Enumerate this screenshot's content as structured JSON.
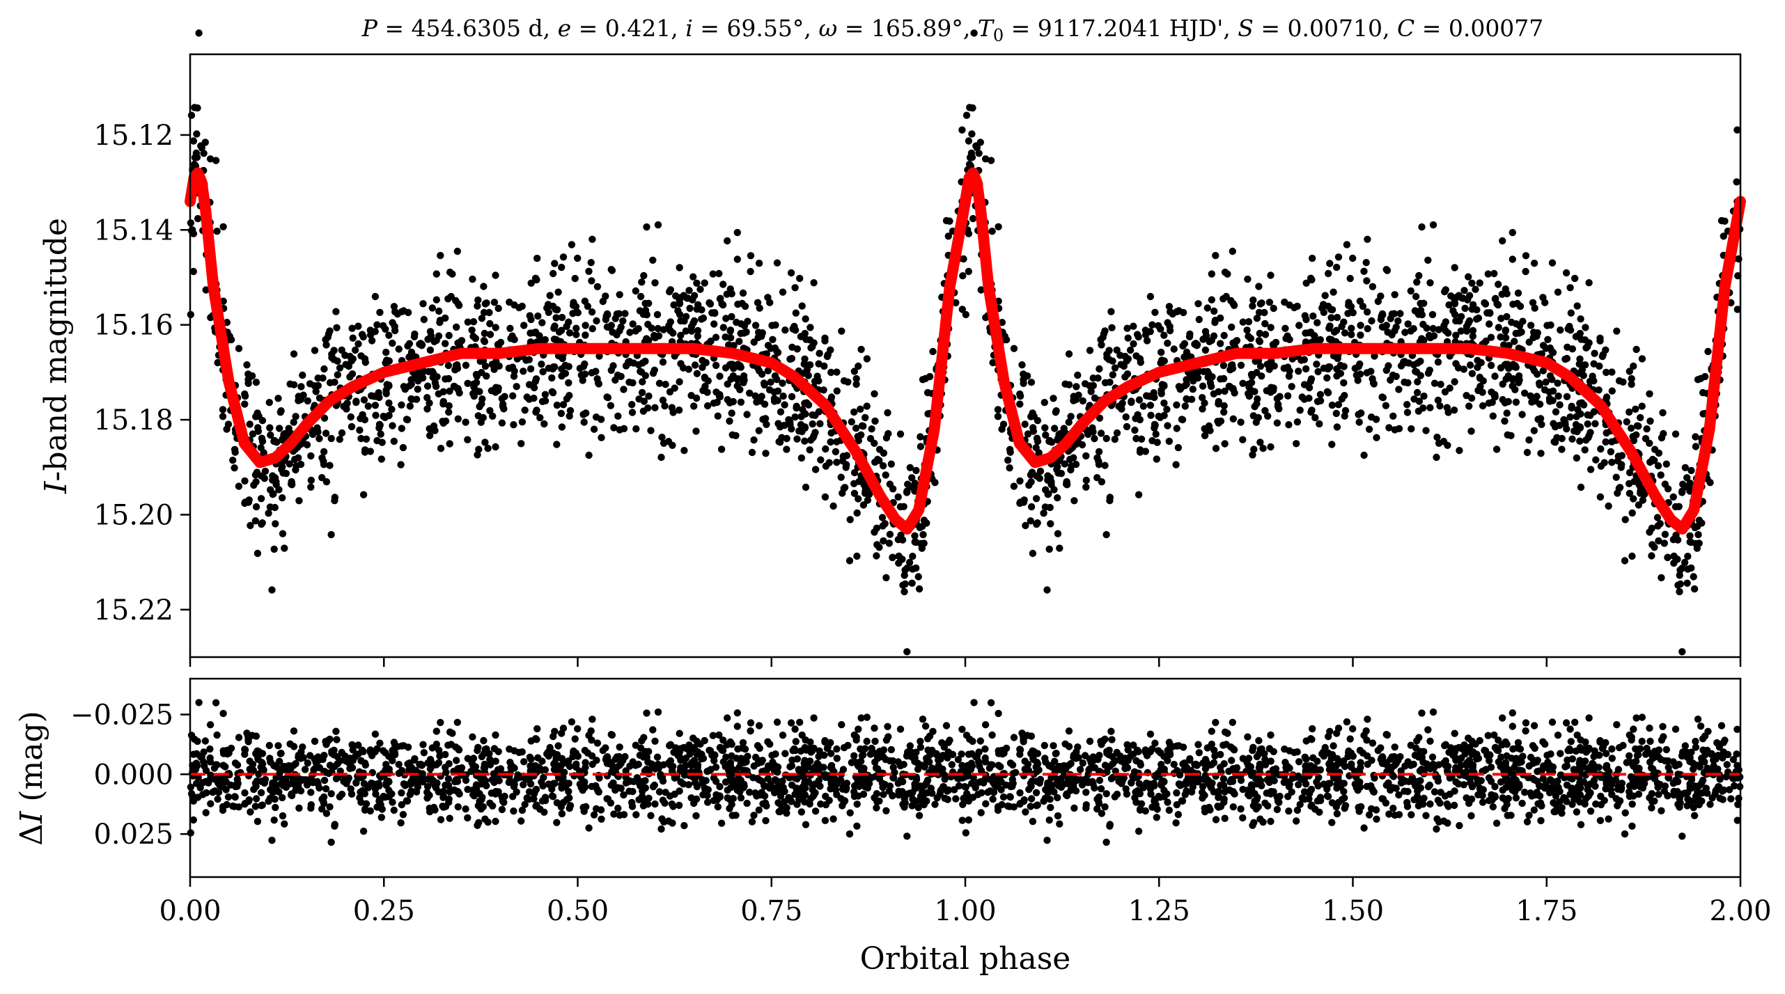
{
  "title": "P = 454.6305 d, e = 0.421, i = 69.55°, ω = 165.89°, T0 = 9117.2041 HJD', S = 0.00710, C = 0.00077",
  "title_parts": {
    "P_sym": "P",
    "P_val": " = 454.6305 d, ",
    "e_sym": "e",
    "e_val": " = 0.421, ",
    "i_sym": "i",
    "i_val": " = 69.55°, ",
    "w_sym": "ω",
    "w_val": " = 165.89°, ",
    "T_sym": "T",
    "T_sub": "0",
    "T_val": " = 9117.2041 HJD', ",
    "S_sym": "S",
    "S_val": " = 0.00710, ",
    "C_sym": "C",
    "C_val": " = 0.00077"
  },
  "colors": {
    "points": "#000000",
    "model": "#ff0000",
    "residual_zero_line": "#ff0000"
  },
  "chart_data": [
    {
      "type": "scatter",
      "panel": "top",
      "ylabel": "I-band magnitude",
      "ylabel_parts": {
        "italic": "I",
        "rest": "-band magnitude"
      },
      "xlabel": "",
      "xlim": [
        0.0,
        2.0
      ],
      "ylim": [
        15.23,
        15.103
      ],
      "y_inverted": true,
      "yticks": [
        "15.12",
        "15.14",
        "15.16",
        "15.18",
        "15.20",
        "15.22"
      ],
      "xtick_values": [
        0.0,
        0.25,
        0.5,
        0.75,
        1.0,
        1.25,
        1.5,
        1.75,
        2.0
      ],
      "xtick_labels_visible": false,
      "grid": false,
      "series": [
        {
          "kind": "scatter",
          "x": [
            0.0,
            0.005,
            0.01,
            0.015,
            0.02,
            0.03,
            0.05,
            0.07,
            0.09,
            0.11,
            0.13,
            0.15,
            0.18,
            0.21,
            0.25,
            0.3,
            0.35,
            0.4,
            0.45,
            0.5,
            0.55,
            0.6,
            0.65,
            0.7,
            0.75,
            0.78,
            0.82,
            0.86,
            0.89,
            0.91,
            0.925,
            0.94,
            0.96,
            0.98,
            1.0,
            1.005,
            1.01,
            1.015,
            1.02,
            1.03,
            1.05,
            1.07,
            1.09,
            1.11,
            1.13,
            1.15,
            1.18,
            1.21,
            1.25,
            1.3,
            1.35,
            1.4,
            1.45,
            1.5,
            1.55,
            1.6,
            1.65,
            1.7,
            1.75,
            1.78,
            1.82,
            1.86,
            1.89,
            1.91,
            1.925,
            1.94,
            1.96,
            1.98,
            2.0
          ],
          "y": [
            15.134,
            15.129,
            15.128,
            15.13,
            15.136,
            15.152,
            15.172,
            15.185,
            15.189,
            15.188,
            15.185,
            15.181,
            15.176,
            15.173,
            15.17,
            15.168,
            15.166,
            15.166,
            15.165,
            15.165,
            15.165,
            15.165,
            15.165,
            15.166,
            15.168,
            15.171,
            15.177,
            15.187,
            15.196,
            15.201,
            15.203,
            15.199,
            15.182,
            15.152,
            15.134,
            15.129,
            15.128,
            15.13,
            15.136,
            15.152,
            15.172,
            15.185,
            15.189,
            15.188,
            15.185,
            15.181,
            15.176,
            15.173,
            15.17,
            15.168,
            15.166,
            15.166,
            15.165,
            15.165,
            15.165,
            15.165,
            15.165,
            15.166,
            15.168,
            15.171,
            15.177,
            15.187,
            15.196,
            15.201,
            15.203,
            15.199,
            15.182,
            15.152,
            15.134
          ],
          "note_count": "observations sampled along the model with scatter of about ±0.01 mag"
        },
        {
          "kind": "line",
          "x": [
            0.0,
            0.005,
            0.01,
            0.015,
            0.02,
            0.03,
            0.05,
            0.07,
            0.09,
            0.11,
            0.13,
            0.15,
            0.18,
            0.21,
            0.25,
            0.3,
            0.35,
            0.4,
            0.45,
            0.5,
            0.55,
            0.6,
            0.65,
            0.7,
            0.75,
            0.78,
            0.82,
            0.86,
            0.89,
            0.91,
            0.925,
            0.94,
            0.96,
            0.98,
            1.0,
            1.005,
            1.01,
            1.015,
            1.02,
            1.03,
            1.05,
            1.07,
            1.09,
            1.11,
            1.13,
            1.15,
            1.18,
            1.21,
            1.25,
            1.3,
            1.35,
            1.4,
            1.45,
            1.5,
            1.55,
            1.6,
            1.65,
            1.7,
            1.75,
            1.78,
            1.82,
            1.86,
            1.89,
            1.91,
            1.925,
            1.94,
            1.96,
            1.98,
            2.0
          ],
          "y": [
            15.134,
            15.129,
            15.128,
            15.13,
            15.136,
            15.152,
            15.172,
            15.185,
            15.189,
            15.188,
            15.185,
            15.181,
            15.176,
            15.173,
            15.17,
            15.168,
            15.166,
            15.166,
            15.165,
            15.165,
            15.165,
            15.165,
            15.165,
            15.166,
            15.168,
            15.171,
            15.177,
            15.187,
            15.196,
            15.201,
            15.203,
            15.199,
            15.182,
            15.152,
            15.134,
            15.129,
            15.128,
            15.13,
            15.136,
            15.152,
            15.172,
            15.185,
            15.189,
            15.188,
            15.185,
            15.181,
            15.176,
            15.173,
            15.17,
            15.168,
            15.166,
            15.166,
            15.165,
            15.165,
            15.165,
            15.165,
            15.165,
            15.166,
            15.168,
            15.171,
            15.177,
            15.187,
            15.196,
            15.201,
            15.203,
            15.199,
            15.182,
            15.152,
            15.134
          ]
        }
      ]
    },
    {
      "type": "scatter",
      "panel": "bottom",
      "ylabel": "ΔI (mag)",
      "ylabel_parts": {
        "delta": "Δ",
        "italic": "I",
        "rest": " (mag)"
      },
      "xlabel": "Orbital phase",
      "xlim": [
        0.0,
        2.0
      ],
      "ylim": [
        0.043,
        -0.04
      ],
      "y_inverted": true,
      "yticks": [
        "−0.025",
        "0.000",
        "0.025"
      ],
      "ytick_values": [
        -0.025,
        0.0,
        0.025
      ],
      "xticks": [
        "0.00",
        "0.25",
        "0.50",
        "0.75",
        "1.00",
        "1.25",
        "1.50",
        "1.75",
        "2.00"
      ],
      "xtick_values": [
        0.0,
        0.25,
        0.5,
        0.75,
        1.0,
        1.25,
        1.5,
        1.75,
        2.0
      ],
      "grid": false,
      "series": [
        {
          "kind": "scatter",
          "residual_range": [
            -0.03,
            0.035
          ],
          "residual_scatter_sigma": 0.009
        },
        {
          "kind": "hline",
          "y": 0.0,
          "style": "dashed"
        }
      ]
    }
  ]
}
